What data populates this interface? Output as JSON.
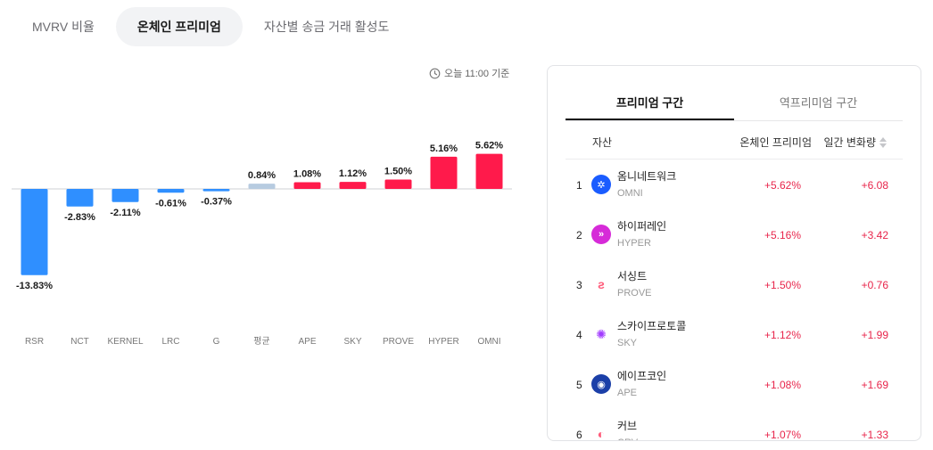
{
  "tabs": [
    {
      "label": "MVRV 비율",
      "active": false
    },
    {
      "label": "온체인 프리미엄",
      "active": true
    },
    {
      "label": "자산별 송금 거래 활성도",
      "active": false
    }
  ],
  "timestamp": "오늘 11:00 기준",
  "colors": {
    "positive": "#ff1a4b",
    "negative": "#2f8fff",
    "average": "#b7cbe0",
    "positive_text": "#e8254b"
  },
  "chart_data": {
    "type": "bar",
    "categories": [
      "RSR",
      "NCT",
      "KERNEL",
      "LRC",
      "G",
      "평균",
      "APE",
      "SKY",
      "PROVE",
      "HYPER",
      "OMNI"
    ],
    "values": [
      -13.83,
      -2.83,
      -2.11,
      -0.61,
      -0.37,
      0.84,
      1.08,
      1.12,
      1.5,
      5.16,
      5.62
    ],
    "value_labels": [
      "-13.83%",
      "-2.83%",
      "-2.11%",
      "-0.61%",
      "-0.37%",
      "0.84%",
      "1.08%",
      "1.12%",
      "1.50%",
      "5.16%",
      "5.62%"
    ],
    "average_category": "평균",
    "title": "",
    "xlabel": "",
    "ylabel": "",
    "ylim": [
      -14,
      6
    ],
    "grid": false
  },
  "panel": {
    "tabs": [
      {
        "label": "프리미엄 구간",
        "active": true
      },
      {
        "label": "역프리미엄 구간",
        "active": false
      }
    ],
    "headers": {
      "asset": "자산",
      "premium": "온체인 프리미엄",
      "change": "일간 변화량"
    },
    "rows": [
      {
        "rank": "1",
        "name": "옴니네트워크",
        "ticker": "OMNI",
        "premium": "+5.62%",
        "change": "+6.08",
        "icon": "omni-icon",
        "icon_color": "#1a5cff",
        "icon_glyph": "✲"
      },
      {
        "rank": "2",
        "name": "하이퍼레인",
        "ticker": "HYPER",
        "premium": "+5.16%",
        "change": "+3.42",
        "icon": "hyper-icon",
        "icon_color": "#d62bd8",
        "icon_glyph": "»"
      },
      {
        "rank": "3",
        "name": "서싱트",
        "ticker": "PROVE",
        "premium": "+1.50%",
        "change": "+0.76",
        "icon": "prove-icon",
        "icon_color": "#ffffff",
        "icon_glyph": "ƨ"
      },
      {
        "rank": "4",
        "name": "스카이프로토콜",
        "ticker": "SKY",
        "premium": "+1.12%",
        "change": "+1.99",
        "icon": "sky-icon",
        "icon_color": "#ffffff",
        "icon_glyph": "✺"
      },
      {
        "rank": "5",
        "name": "에이프코인",
        "ticker": "APE",
        "premium": "+1.08%",
        "change": "+1.69",
        "icon": "ape-icon",
        "icon_color": "#1b3fa8",
        "icon_glyph": "◉"
      },
      {
        "rank": "6",
        "name": "커브",
        "ticker": "CRV",
        "premium": "+1.07%",
        "change": "+1.33",
        "icon": "crv-icon",
        "icon_color": "#ffffff",
        "icon_glyph": "◐"
      }
    ]
  }
}
